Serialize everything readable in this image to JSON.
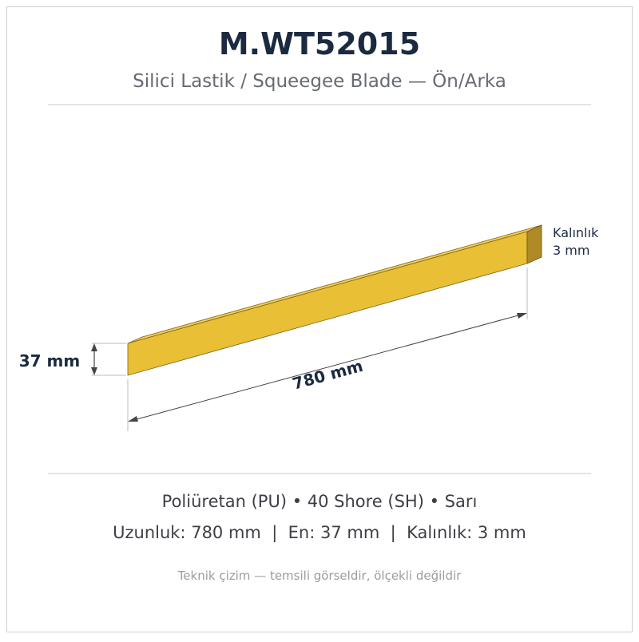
{
  "header": {
    "title": "M.WT52015",
    "subtitle": "Silici Lastik / Squeegee Blade — Ön/Arka"
  },
  "drawing": {
    "thickness_label": "Kalınlık",
    "thickness_value": "3 mm",
    "height_label": "37 mm",
    "length_label": "780 mm"
  },
  "specs": {
    "line1": "Poliüretan (PU) • 40 Shore (SH) • Sarı",
    "line2": "Uzunluk: 780 mm  |  En: 37 mm  |  Kalınlık: 3 mm"
  },
  "note": "Teknik çizim — temsili görseldir, ölçekli değildir"
}
